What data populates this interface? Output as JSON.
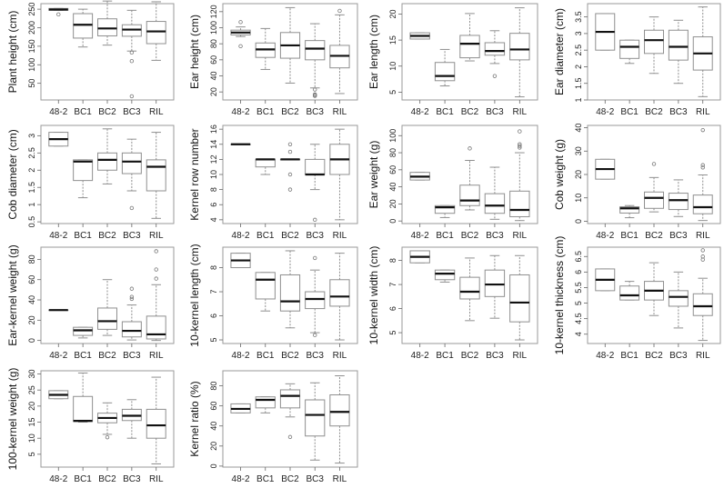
{
  "chart_data": [
    {
      "type": "box",
      "ylabel": "Plant height (cm)",
      "ylim": [
        5,
        265
      ],
      "yticks": [
        50,
        100,
        150,
        200,
        250
      ],
      "categories": [
        "48-2",
        "BC1",
        "BC2",
        "BC3",
        "RIL"
      ],
      "boxes": [
        {
          "whislo": 247,
          "q1": 247,
          "med": 249,
          "q3": 252,
          "whishi": 252,
          "fliers": [
            236
          ]
        },
        {
          "whislo": 148,
          "q1": 172,
          "med": 208,
          "q3": 238,
          "whishi": 250,
          "fliers": []
        },
        {
          "whislo": 153,
          "q1": 178,
          "med": 198,
          "q3": 224,
          "whishi": 272,
          "fliers": []
        },
        {
          "whislo": 137,
          "q1": 177,
          "med": 195,
          "q3": 208,
          "whishi": 247,
          "fliers": [
            133,
            110,
            15
          ]
        },
        {
          "whislo": 112,
          "q1": 157,
          "med": 190,
          "q3": 217,
          "whishi": 270,
          "fliers": []
        }
      ]
    },
    {
      "type": "box",
      "ylabel": "Ear height (cm)",
      "ylim": [
        10,
        130
      ],
      "yticks": [
        20,
        40,
        60,
        80,
        100,
        120
      ],
      "categories": [
        "48-2",
        "BC1",
        "BC2",
        "BC3",
        "RIL"
      ],
      "boxes": [
        {
          "whislo": 89,
          "q1": 91,
          "med": 94,
          "q3": 97,
          "whishi": 101,
          "fliers": [
            107,
            77
          ]
        },
        {
          "whislo": 48,
          "q1": 63,
          "med": 73,
          "q3": 81,
          "whishi": 99,
          "fliers": []
        },
        {
          "whislo": 31,
          "q1": 62,
          "med": 78,
          "q3": 94,
          "whishi": 125,
          "fliers": []
        },
        {
          "whislo": 25,
          "q1": 60,
          "med": 74,
          "q3": 84,
          "whishi": 105,
          "fliers": [
            23,
            17,
            16,
            15
          ]
        },
        {
          "whislo": 18,
          "q1": 50,
          "med": 65,
          "q3": 78,
          "whishi": 116,
          "fliers": [
            121
          ]
        }
      ]
    },
    {
      "type": "box",
      "ylabel": "Ear length (cm)",
      "ylim": [
        3.5,
        22
      ],
      "yticks": [
        5,
        10,
        15,
        20
      ],
      "categories": [
        "48-2",
        "BC1",
        "BC2",
        "BC3",
        "RIL"
      ],
      "boxes": [
        {
          "whislo": 15.2,
          "q1": 15.2,
          "med": 15.8,
          "q3": 16.4,
          "whishi": 16.4,
          "fliers": []
        },
        {
          "whislo": 6.2,
          "q1": 7.2,
          "med": 8.1,
          "q3": 10.7,
          "whishi": 13.2,
          "fliers": []
        },
        {
          "whislo": 11,
          "q1": 11.6,
          "med": 14.3,
          "q3": 15.9,
          "whishi": 20.1,
          "fliers": []
        },
        {
          "whislo": 10.5,
          "q1": 12.1,
          "med": 12.9,
          "q3": 14.5,
          "whishi": 16.8,
          "fliers": [
            8.1
          ]
        },
        {
          "whislo": 4.1,
          "q1": 11.2,
          "med": 13.2,
          "q3": 16.3,
          "whishi": 21.2,
          "fliers": []
        }
      ]
    },
    {
      "type": "box",
      "ylabel": "Ear diameter (cm)",
      "ylim": [
        1.0,
        3.9
      ],
      "yticks": [
        1.0,
        1.5,
        2.0,
        2.5,
        3.0,
        3.5
      ],
      "categories": [
        "48-2",
        "BC1",
        "BC2",
        "BC3",
        "RIL"
      ],
      "boxes": [
        {
          "whislo": 2.5,
          "q1": 2.5,
          "med": 3.05,
          "q3": 3.6,
          "whishi": 3.6,
          "fliers": []
        },
        {
          "whislo": 2.1,
          "q1": 2.25,
          "med": 2.6,
          "q3": 2.8,
          "whishi": 2.8,
          "fliers": []
        },
        {
          "whislo": 1.8,
          "q1": 2.4,
          "med": 2.8,
          "q3": 3.1,
          "whishi": 3.5,
          "fliers": []
        },
        {
          "whislo": 1.5,
          "q1": 2.2,
          "med": 2.6,
          "q3": 3.1,
          "whishi": 3.4,
          "fliers": []
        },
        {
          "whislo": 1.1,
          "q1": 1.9,
          "med": 2.4,
          "q3": 2.9,
          "whishi": 3.8,
          "fliers": []
        }
      ]
    },
    {
      "type": "box",
      "ylabel": "Cob diameter (cm)",
      "ylim": [
        0.45,
        3.3
      ],
      "yticks": [
        0.5,
        1.0,
        1.5,
        2.0,
        2.5,
        3.0
      ],
      "categories": [
        "48-2",
        "BC1",
        "BC2",
        "BC3",
        "RIL"
      ],
      "boxes": [
        {
          "whislo": 2.7,
          "q1": 2.7,
          "med": 2.9,
          "q3": 3.1,
          "whishi": 3.1,
          "fliers": []
        },
        {
          "whislo": 1.2,
          "q1": 1.7,
          "med": 2.25,
          "q3": 2.3,
          "whishi": 2.3,
          "fliers": []
        },
        {
          "whislo": 1.6,
          "q1": 2.0,
          "med": 2.3,
          "q3": 2.5,
          "whishi": 3.2,
          "fliers": []
        },
        {
          "whislo": 1.4,
          "q1": 1.9,
          "med": 2.25,
          "q3": 2.5,
          "whishi": 2.9,
          "fliers": [
            0.9
          ]
        },
        {
          "whislo": 0.6,
          "q1": 1.4,
          "med": 2.1,
          "q3": 2.3,
          "whishi": 3.1,
          "fliers": []
        }
      ]
    },
    {
      "type": "box",
      "ylabel": "Kernel row number",
      "ylim": [
        3.5,
        16.5
      ],
      "yticks": [
        4,
        6,
        8,
        10,
        12,
        14,
        16
      ],
      "categories": [
        "48-2",
        "BC1",
        "BC2",
        "BC3",
        "RIL"
      ],
      "boxes": [
        {
          "whislo": 14,
          "q1": 14,
          "med": 14,
          "q3": 14,
          "whishi": 14,
          "fliers": []
        },
        {
          "whislo": 10,
          "q1": 11,
          "med": 12,
          "q3": 12,
          "whishi": 12,
          "fliers": []
        },
        {
          "whislo": 12,
          "q1": 12,
          "med": 12,
          "q3": 12,
          "whishi": 12,
          "fliers": [
            14,
            13,
            10,
            8
          ]
        },
        {
          "whislo": 8,
          "q1": 10,
          "med": 10,
          "q3": 12,
          "whishi": 14,
          "fliers": [
            4
          ]
        },
        {
          "whislo": 4,
          "q1": 10,
          "med": 12,
          "q3": 14,
          "whishi": 16,
          "fliers": []
        }
      ]
    },
    {
      "type": "box",
      "ylabel": "Ear weight (g)",
      "ylim": [
        -3,
        112
      ],
      "yticks": [
        0,
        20,
        40,
        60,
        80,
        100
      ],
      "categories": [
        "48-2",
        "BC1",
        "BC2",
        "BC3",
        "RIL"
      ],
      "boxes": [
        {
          "whislo": 48,
          "q1": 48,
          "med": 52,
          "q3": 57,
          "whishi": 57,
          "fliers": []
        },
        {
          "whislo": 4,
          "q1": 9,
          "med": 16,
          "q3": 18,
          "whishi": 18,
          "fliers": []
        },
        {
          "whislo": 13,
          "q1": 18,
          "med": 24,
          "q3": 42,
          "whishi": 71,
          "fliers": [
            85
          ]
        },
        {
          "whislo": 2,
          "q1": 9,
          "med": 18,
          "q3": 32,
          "whishi": 63,
          "fliers": []
        },
        {
          "whislo": 0.5,
          "q1": 5,
          "med": 13,
          "q3": 35,
          "whishi": 80,
          "fliers": [
            105,
            90,
            88,
            86
          ]
        }
      ]
    },
    {
      "type": "box",
      "ylabel": "Cob weight (g)",
      "ylim": [
        -1,
        41
      ],
      "yticks": [
        0,
        10,
        20,
        30,
        40
      ],
      "categories": [
        "48-2",
        "BC1",
        "BC2",
        "BC3",
        "RIL"
      ],
      "boxes": [
        {
          "whislo": 18,
          "q1": 18,
          "med": 22.3,
          "q3": 26.5,
          "whishi": 26.5,
          "fliers": []
        },
        {
          "whislo": 1.5,
          "q1": 3.5,
          "med": 5.5,
          "q3": 6.2,
          "whishi": 6.7,
          "fliers": []
        },
        {
          "whislo": 4,
          "q1": 5.5,
          "med": 10,
          "q3": 12.5,
          "whishi": 18.7,
          "fliers": [
            24.5
          ]
        },
        {
          "whislo": 2,
          "q1": 5,
          "med": 9,
          "q3": 12,
          "whishi": 17.7,
          "fliers": []
        },
        {
          "whislo": 0.3,
          "q1": 3.2,
          "med": 6,
          "q3": 11.2,
          "whishi": 19.8,
          "fliers": [
            39,
            24,
            23
          ]
        }
      ]
    },
    {
      "type": "box",
      "ylabel": "Ear-kernel weight (g)",
      "ylim": [
        -3,
        92
      ],
      "yticks": [
        0,
        20,
        40,
        60,
        80
      ],
      "categories": [
        "48-2",
        "BC1",
        "BC2",
        "BC3",
        "RIL"
      ],
      "boxes": [
        {
          "whislo": 30,
          "q1": 30,
          "med": 30,
          "q3": 30,
          "whishi": 30,
          "fliers": []
        },
        {
          "whislo": 2.5,
          "q1": 5,
          "med": 10,
          "q3": 13,
          "whishi": 13,
          "fliers": []
        },
        {
          "whislo": 5,
          "q1": 11,
          "med": 19,
          "q3": 32,
          "whishi": 60,
          "fliers": []
        },
        {
          "whislo": 0.5,
          "q1": 3.5,
          "med": 9.5,
          "q3": 18.5,
          "whishi": 35,
          "fliers": [
            51,
            43,
            41
          ]
        },
        {
          "whislo": 0,
          "q1": 1.5,
          "med": 6,
          "q3": 24,
          "whishi": 55,
          "fliers": [
            88,
            70,
            61
          ]
        }
      ]
    },
    {
      "type": "box",
      "ylabel": "10-kernel length (cm)",
      "ylim": [
        4.85,
        8.85
      ],
      "yticks": [
        5,
        6,
        7,
        8
      ],
      "categories": [
        "48-2",
        "BC1",
        "BC2",
        "BC3",
        "RIL"
      ],
      "boxes": [
        {
          "whislo": 8.0,
          "q1": 8.0,
          "med": 8.3,
          "q3": 8.6,
          "whishi": 8.6,
          "fliers": []
        },
        {
          "whislo": 6.2,
          "q1": 6.7,
          "med": 7.5,
          "q3": 7.8,
          "whishi": 7.8,
          "fliers": []
        },
        {
          "whislo": 5.5,
          "q1": 6.2,
          "med": 6.6,
          "q3": 7.7,
          "whishi": 8.7,
          "fliers": []
        },
        {
          "whislo": 5.3,
          "q1": 6.3,
          "med": 6.7,
          "q3": 7.0,
          "whishi": 7.9,
          "fliers": [
            8.4,
            5.2
          ]
        },
        {
          "whislo": 5.0,
          "q1": 6.4,
          "med": 6.8,
          "q3": 7.5,
          "whishi": 8.6,
          "fliers": []
        }
      ]
    },
    {
      "type": "box",
      "ylabel": "10-kernel width (cm)",
      "ylim": [
        4.55,
        8.55
      ],
      "yticks": [
        5,
        6,
        7,
        8
      ],
      "categories": [
        "48-2",
        "BC1",
        "BC2",
        "BC3",
        "RIL"
      ],
      "boxes": [
        {
          "whislo": 7.9,
          "q1": 7.9,
          "med": 8.15,
          "q3": 8.4,
          "whishi": 8.4,
          "fliers": []
        },
        {
          "whislo": 7.1,
          "q1": 7.2,
          "med": 7.45,
          "q3": 7.6,
          "whishi": 7.6,
          "fliers": []
        },
        {
          "whislo": 5.5,
          "q1": 6.4,
          "med": 6.7,
          "q3": 7.3,
          "whishi": 8.1,
          "fliers": []
        },
        {
          "whislo": 5.6,
          "q1": 6.5,
          "med": 7.0,
          "q3": 7.6,
          "whishi": 8.2,
          "fliers": []
        },
        {
          "whislo": 4.7,
          "q1": 5.45,
          "med": 6.25,
          "q3": 7.4,
          "whishi": 8.2,
          "fliers": []
        }
      ]
    },
    {
      "type": "box",
      "ylabel": "10-kernel thickness (cm)",
      "ylim": [
        3.7,
        6.8
      ],
      "yticks": [
        4.0,
        4.5,
        5.0,
        5.5,
        6.0,
        6.5
      ],
      "categories": [
        "48-2",
        "BC1",
        "BC2",
        "BC3",
        "RIL"
      ],
      "boxes": [
        {
          "whislo": 5.4,
          "q1": 5.4,
          "med": 5.75,
          "q3": 6.1,
          "whishi": 6.1,
          "fliers": []
        },
        {
          "whislo": 5.1,
          "q1": 5.1,
          "med": 5.25,
          "q3": 5.55,
          "whishi": 5.7,
          "fliers": []
        },
        {
          "whislo": 4.6,
          "q1": 5.1,
          "med": 5.4,
          "q3": 5.7,
          "whishi": 6.3,
          "fliers": []
        },
        {
          "whislo": 4.2,
          "q1": 4.9,
          "med": 5.2,
          "q3": 5.4,
          "whishi": 6.0,
          "fliers": []
        },
        {
          "whislo": 3.8,
          "q1": 4.6,
          "med": 4.9,
          "q3": 5.3,
          "whishi": 5.8,
          "fliers": [
            6.7,
            6.5,
            6.4
          ]
        }
      ]
    },
    {
      "type": "box",
      "ylabel": "100-kernel weight (g)",
      "ylim": [
        1,
        31
      ],
      "yticks": [
        5,
        10,
        15,
        20,
        25,
        30
      ],
      "categories": [
        "48-2",
        "BC1",
        "BC2",
        "BC3",
        "RIL"
      ],
      "boxes": [
        {
          "whislo": 22.3,
          "q1": 22.3,
          "med": 23.5,
          "q3": 24.8,
          "whishi": 24.8,
          "fliers": []
        },
        {
          "whislo": 15,
          "q1": 15.2,
          "med": 15.4,
          "q3": 23,
          "whishi": 30.3,
          "fliers": []
        },
        {
          "whislo": 11.2,
          "q1": 14.8,
          "med": 16.3,
          "q3": 17.8,
          "whishi": 21,
          "fliers": [
            10.3
          ]
        },
        {
          "whislo": 10,
          "q1": 15.5,
          "med": 17,
          "q3": 19,
          "whishi": 22,
          "fliers": []
        },
        {
          "whislo": 2,
          "q1": 10,
          "med": 14,
          "q3": 19,
          "whishi": 29,
          "fliers": []
        }
      ]
    },
    {
      "type": "box",
      "ylabel": "Kernel ratio (%)",
      "ylim": [
        -1,
        95
      ],
      "yticks": [
        0,
        20,
        40,
        60,
        80
      ],
      "categories": [
        "48-2",
        "BC1",
        "BC2",
        "BC3",
        "RIL"
      ],
      "boxes": [
        {
          "whislo": 53,
          "q1": 53,
          "med": 57,
          "q3": 62,
          "whishi": 62,
          "fliers": []
        },
        {
          "whislo": 53,
          "q1": 58,
          "med": 66,
          "q3": 69,
          "whishi": 69,
          "fliers": []
        },
        {
          "whislo": 49,
          "q1": 58,
          "med": 70,
          "q3": 76,
          "whishi": 82,
          "fliers": [
            29
          ]
        },
        {
          "whislo": 6,
          "q1": 30,
          "med": 51,
          "q3": 66,
          "whishi": 83,
          "fliers": []
        },
        {
          "whislo": 3,
          "q1": 40,
          "med": 54,
          "q3": 71,
          "whishi": 90,
          "fliers": []
        }
      ]
    }
  ]
}
